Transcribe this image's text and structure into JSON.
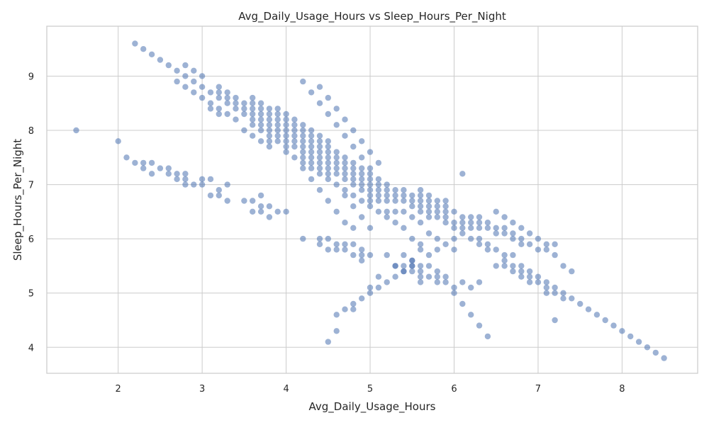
{
  "chart_data": {
    "type": "scatter",
    "title": "Avg_Daily_Usage_Hours vs Sleep_Hours_Per_Night",
    "xlabel": "Avg_Daily_Usage_Hours",
    "ylabel": "Sleep_Hours_Per_Night",
    "xlim": [
      1.15,
      8.9
    ],
    "ylim": [
      3.52,
      9.92
    ],
    "xticks": [
      2,
      3,
      4,
      5,
      6,
      7,
      8
    ],
    "yticks": [
      4,
      5,
      6,
      7,
      8,
      9
    ],
    "grid": true,
    "marker_color": "#4c72b0",
    "marker_alpha": 0.55,
    "points": [
      [
        1.5,
        8.0
      ],
      [
        2.0,
        7.8
      ],
      [
        2.1,
        7.5
      ],
      [
        2.2,
        7.4
      ],
      [
        2.3,
        7.4
      ],
      [
        2.3,
        7.3
      ],
      [
        2.4,
        7.4
      ],
      [
        2.4,
        7.2
      ],
      [
        2.5,
        7.3
      ],
      [
        2.6,
        7.3
      ],
      [
        2.6,
        7.2
      ],
      [
        2.7,
        7.2
      ],
      [
        2.7,
        7.1
      ],
      [
        2.8,
        7.2
      ],
      [
        2.8,
        7.1
      ],
      [
        2.8,
        7.0
      ],
      [
        2.9,
        7.0
      ],
      [
        3.0,
        7.1
      ],
      [
        3.0,
        7.0
      ],
      [
        3.1,
        7.1
      ],
      [
        3.1,
        6.8
      ],
      [
        3.2,
        6.9
      ],
      [
        3.2,
        6.8
      ],
      [
        3.3,
        7.0
      ],
      [
        3.3,
        6.7
      ],
      [
        3.5,
        6.7
      ],
      [
        3.6,
        6.7
      ],
      [
        3.6,
        6.5
      ],
      [
        3.7,
        6.8
      ],
      [
        3.7,
        6.6
      ],
      [
        3.7,
        6.5
      ],
      [
        3.8,
        6.6
      ],
      [
        3.8,
        6.4
      ],
      [
        3.9,
        6.5
      ],
      [
        4.0,
        6.5
      ],
      [
        2.2,
        9.6
      ],
      [
        2.3,
        9.5
      ],
      [
        2.4,
        9.4
      ],
      [
        2.5,
        9.3
      ],
      [
        2.6,
        9.2
      ],
      [
        2.7,
        9.1
      ],
      [
        2.7,
        8.9
      ],
      [
        2.8,
        9.2
      ],
      [
        2.8,
        9.0
      ],
      [
        2.8,
        8.8
      ],
      [
        2.9,
        9.1
      ],
      [
        2.9,
        8.9
      ],
      [
        2.9,
        8.7
      ],
      [
        3.0,
        9.0
      ],
      [
        3.0,
        8.8
      ],
      [
        3.0,
        8.6
      ],
      [
        3.1,
        8.7
      ],
      [
        3.1,
        8.5
      ],
      [
        3.1,
        8.4
      ],
      [
        3.2,
        8.8
      ],
      [
        3.2,
        8.7
      ],
      [
        3.2,
        8.6
      ],
      [
        3.2,
        8.4
      ],
      [
        3.2,
        8.3
      ],
      [
        3.3,
        8.7
      ],
      [
        3.3,
        8.6
      ],
      [
        3.3,
        8.5
      ],
      [
        3.3,
        8.3
      ],
      [
        3.4,
        8.6
      ],
      [
        3.4,
        8.5
      ],
      [
        3.4,
        8.4
      ],
      [
        3.4,
        8.2
      ],
      [
        3.5,
        8.5
      ],
      [
        3.5,
        8.4
      ],
      [
        3.5,
        8.3
      ],
      [
        3.5,
        8.0
      ],
      [
        3.6,
        8.6
      ],
      [
        3.6,
        8.5
      ],
      [
        3.6,
        8.4
      ],
      [
        3.6,
        8.3
      ],
      [
        3.6,
        8.2
      ],
      [
        3.6,
        8.1
      ],
      [
        3.6,
        7.9
      ],
      [
        3.7,
        8.5
      ],
      [
        3.7,
        8.4
      ],
      [
        3.7,
        8.3
      ],
      [
        3.7,
        8.2
      ],
      [
        3.7,
        8.1
      ],
      [
        3.7,
        8.0
      ],
      [
        3.7,
        7.8
      ],
      [
        3.8,
        8.4
      ],
      [
        3.8,
        8.3
      ],
      [
        3.8,
        8.2
      ],
      [
        3.8,
        8.1
      ],
      [
        3.8,
        8.0
      ],
      [
        3.8,
        7.9
      ],
      [
        3.8,
        7.8
      ],
      [
        3.8,
        7.7
      ],
      [
        3.9,
        8.4
      ],
      [
        3.9,
        8.3
      ],
      [
        3.9,
        8.2
      ],
      [
        3.9,
        8.1
      ],
      [
        3.9,
        8.0
      ],
      [
        3.9,
        7.9
      ],
      [
        3.9,
        7.8
      ],
      [
        4.0,
        8.3
      ],
      [
        4.0,
        8.2
      ],
      [
        4.0,
        8.1
      ],
      [
        4.0,
        8.0
      ],
      [
        4.0,
        7.9
      ],
      [
        4.0,
        7.8
      ],
      [
        4.0,
        7.7
      ],
      [
        4.0,
        7.6
      ],
      [
        4.1,
        8.2
      ],
      [
        4.1,
        8.1
      ],
      [
        4.1,
        8.0
      ],
      [
        4.1,
        7.9
      ],
      [
        4.1,
        7.8
      ],
      [
        4.1,
        7.7
      ],
      [
        4.1,
        7.5
      ],
      [
        4.2,
        8.9
      ],
      [
        4.2,
        8.1
      ],
      [
        4.2,
        8.0
      ],
      [
        4.2,
        7.9
      ],
      [
        4.2,
        7.8
      ],
      [
        4.2,
        7.7
      ],
      [
        4.2,
        7.6
      ],
      [
        4.2,
        7.5
      ],
      [
        4.2,
        7.4
      ],
      [
        4.2,
        7.3
      ],
      [
        4.3,
        8.7
      ],
      [
        4.3,
        8.0
      ],
      [
        4.3,
        7.9
      ],
      [
        4.3,
        7.8
      ],
      [
        4.3,
        7.7
      ],
      [
        4.3,
        7.6
      ],
      [
        4.3,
        7.5
      ],
      [
        4.3,
        7.4
      ],
      [
        4.3,
        7.3
      ],
      [
        4.3,
        7.1
      ],
      [
        4.4,
        8.8
      ],
      [
        4.4,
        8.5
      ],
      [
        4.4,
        7.9
      ],
      [
        4.4,
        7.8
      ],
      [
        4.4,
        7.7
      ],
      [
        4.4,
        7.6
      ],
      [
        4.4,
        7.5
      ],
      [
        4.4,
        7.4
      ],
      [
        4.4,
        7.3
      ],
      [
        4.4,
        7.2
      ],
      [
        4.4,
        6.9
      ],
      [
        4.5,
        8.6
      ],
      [
        4.5,
        8.3
      ],
      [
        4.5,
        7.8
      ],
      [
        4.5,
        7.7
      ],
      [
        4.5,
        7.6
      ],
      [
        4.5,
        7.5
      ],
      [
        4.5,
        7.4
      ],
      [
        4.5,
        7.3
      ],
      [
        4.5,
        7.2
      ],
      [
        4.5,
        7.1
      ],
      [
        4.5,
        6.7
      ],
      [
        4.6,
        8.4
      ],
      [
        4.6,
        8.1
      ],
      [
        4.6,
        7.6
      ],
      [
        4.6,
        7.5
      ],
      [
        4.6,
        7.4
      ],
      [
        4.6,
        7.3
      ],
      [
        4.6,
        7.2
      ],
      [
        4.6,
        7.0
      ],
      [
        4.6,
        6.5
      ],
      [
        4.7,
        8.2
      ],
      [
        4.7,
        7.9
      ],
      [
        4.7,
        7.5
      ],
      [
        4.7,
        7.4
      ],
      [
        4.7,
        7.3
      ],
      [
        4.7,
        7.2
      ],
      [
        4.7,
        7.1
      ],
      [
        4.7,
        6.9
      ],
      [
        4.7,
        6.8
      ],
      [
        4.7,
        6.3
      ],
      [
        4.8,
        8.0
      ],
      [
        4.8,
        7.7
      ],
      [
        4.8,
        7.4
      ],
      [
        4.8,
        7.3
      ],
      [
        4.8,
        7.2
      ],
      [
        4.8,
        7.1
      ],
      [
        4.8,
        7.0
      ],
      [
        4.8,
        6.8
      ],
      [
        4.8,
        6.6
      ],
      [
        4.8,
        6.2
      ],
      [
        4.9,
        7.8
      ],
      [
        4.9,
        7.5
      ],
      [
        4.9,
        7.3
      ],
      [
        4.9,
        7.2
      ],
      [
        4.9,
        7.1
      ],
      [
        4.9,
        7.0
      ],
      [
        4.9,
        6.9
      ],
      [
        4.9,
        6.7
      ],
      [
        4.9,
        6.4
      ],
      [
        5.0,
        7.6
      ],
      [
        5.0,
        7.3
      ],
      [
        5.0,
        7.2
      ],
      [
        5.0,
        7.1
      ],
      [
        5.0,
        7.0
      ],
      [
        5.0,
        6.9
      ],
      [
        5.0,
        6.8
      ],
      [
        5.0,
        6.7
      ],
      [
        5.0,
        6.6
      ],
      [
        5.0,
        6.2
      ],
      [
        5.1,
        7.4
      ],
      [
        5.1,
        7.1
      ],
      [
        5.1,
        7.0
      ],
      [
        5.1,
        6.9
      ],
      [
        5.1,
        6.8
      ],
      [
        5.1,
        6.7
      ],
      [
        5.1,
        6.5
      ],
      [
        5.2,
        7.0
      ],
      [
        5.2,
        6.9
      ],
      [
        5.2,
        6.8
      ],
      [
        5.2,
        6.7
      ],
      [
        5.2,
        6.5
      ],
      [
        5.2,
        6.4
      ],
      [
        5.3,
        6.9
      ],
      [
        5.3,
        6.8
      ],
      [
        5.3,
        6.7
      ],
      [
        5.3,
        6.5
      ],
      [
        5.3,
        6.3
      ],
      [
        5.4,
        6.9
      ],
      [
        5.4,
        6.8
      ],
      [
        5.4,
        6.7
      ],
      [
        5.4,
        6.5
      ],
      [
        5.4,
        6.2
      ],
      [
        5.5,
        6.8
      ],
      [
        5.5,
        6.7
      ],
      [
        5.5,
        6.6
      ],
      [
        5.5,
        6.4
      ],
      [
        5.5,
        6.0
      ],
      [
        5.6,
        6.9
      ],
      [
        5.6,
        6.8
      ],
      [
        5.6,
        6.7
      ],
      [
        5.6,
        6.6
      ],
      [
        5.6,
        6.5
      ],
      [
        5.6,
        6.3
      ],
      [
        5.6,
        5.9
      ],
      [
        5.7,
        6.8
      ],
      [
        5.7,
        6.7
      ],
      [
        5.7,
        6.6
      ],
      [
        5.7,
        6.5
      ],
      [
        5.7,
        6.4
      ],
      [
        5.7,
        6.1
      ],
      [
        5.8,
        6.7
      ],
      [
        5.8,
        6.6
      ],
      [
        5.8,
        6.5
      ],
      [
        5.8,
        6.4
      ],
      [
        5.8,
        6.0
      ],
      [
        5.8,
        5.8
      ],
      [
        5.9,
        6.7
      ],
      [
        5.9,
        6.6
      ],
      [
        5.9,
        6.5
      ],
      [
        5.9,
        6.4
      ],
      [
        5.9,
        6.3
      ],
      [
        5.9,
        5.9
      ],
      [
        6.0,
        6.5
      ],
      [
        6.0,
        6.3
      ],
      [
        6.0,
        6.2
      ],
      [
        6.0,
        6.0
      ],
      [
        6.0,
        5.8
      ],
      [
        6.1,
        7.2
      ],
      [
        6.1,
        6.4
      ],
      [
        6.1,
        6.3
      ],
      [
        6.1,
        6.2
      ],
      [
        6.1,
        6.1
      ],
      [
        6.2,
        6.4
      ],
      [
        6.2,
        6.3
      ],
      [
        6.2,
        6.2
      ],
      [
        6.2,
        6.0
      ],
      [
        6.3,
        6.4
      ],
      [
        6.3,
        6.3
      ],
      [
        6.3,
        6.2
      ],
      [
        6.3,
        6.0
      ],
      [
        6.3,
        5.9
      ],
      [
        6.4,
        6.3
      ],
      [
        6.4,
        6.2
      ],
      [
        6.4,
        5.9
      ],
      [
        6.4,
        5.8
      ],
      [
        6.5,
        6.5
      ],
      [
        6.5,
        6.2
      ],
      [
        6.5,
        6.1
      ],
      [
        6.5,
        5.8
      ],
      [
        6.5,
        5.5
      ],
      [
        6.6,
        6.4
      ],
      [
        6.6,
        6.2
      ],
      [
        6.6,
        6.1
      ],
      [
        6.6,
        5.7
      ],
      [
        6.6,
        5.6
      ],
      [
        6.6,
        5.5
      ],
      [
        6.7,
        6.3
      ],
      [
        6.7,
        6.1
      ],
      [
        6.7,
        6.0
      ],
      [
        6.7,
        5.7
      ],
      [
        6.7,
        5.5
      ],
      [
        6.7,
        5.4
      ],
      [
        6.8,
        6.2
      ],
      [
        6.8,
        6.0
      ],
      [
        6.8,
        5.9
      ],
      [
        6.8,
        5.5
      ],
      [
        6.8,
        5.4
      ],
      [
        6.8,
        5.3
      ],
      [
        6.9,
        6.1
      ],
      [
        6.9,
        5.9
      ],
      [
        6.9,
        5.4
      ],
      [
        6.9,
        5.3
      ],
      [
        6.9,
        5.2
      ],
      [
        7.0,
        6.0
      ],
      [
        7.0,
        5.8
      ],
      [
        7.0,
        5.3
      ],
      [
        7.0,
        5.2
      ],
      [
        7.1,
        5.9
      ],
      [
        7.1,
        5.8
      ],
      [
        7.1,
        5.2
      ],
      [
        7.1,
        5.1
      ],
      [
        7.1,
        5.0
      ],
      [
        7.2,
        5.9
      ],
      [
        7.2,
        5.7
      ],
      [
        7.2,
        5.1
      ],
      [
        7.2,
        5.0
      ],
      [
        7.2,
        4.5
      ],
      [
        7.3,
        5.5
      ],
      [
        7.3,
        5.0
      ],
      [
        7.3,
        4.9
      ],
      [
        7.4,
        5.4
      ],
      [
        7.4,
        4.9
      ],
      [
        7.5,
        4.8
      ],
      [
        7.6,
        4.7
      ],
      [
        7.7,
        4.6
      ],
      [
        7.8,
        4.5
      ],
      [
        7.9,
        4.4
      ],
      [
        8.0,
        4.3
      ],
      [
        8.1,
        4.2
      ],
      [
        8.2,
        4.1
      ],
      [
        8.3,
        4.0
      ],
      [
        8.4,
        3.9
      ],
      [
        8.5,
        3.8
      ],
      [
        4.2,
        6.0
      ],
      [
        4.4,
        6.0
      ],
      [
        4.4,
        5.9
      ],
      [
        4.5,
        6.0
      ],
      [
        4.5,
        5.8
      ],
      [
        4.6,
        5.9
      ],
      [
        4.6,
        5.8
      ],
      [
        4.7,
        5.9
      ],
      [
        4.7,
        5.8
      ],
      [
        4.8,
        5.9
      ],
      [
        4.8,
        5.7
      ],
      [
        4.9,
        5.8
      ],
      [
        4.9,
        5.7
      ],
      [
        4.9,
        5.6
      ],
      [
        5.0,
        5.7
      ],
      [
        5.2,
        5.7
      ],
      [
        5.3,
        5.5
      ],
      [
        5.4,
        5.7
      ],
      [
        5.4,
        5.5
      ],
      [
        5.4,
        5.4
      ],
      [
        5.5,
        5.6
      ],
      [
        5.5,
        5.5
      ],
      [
        5.5,
        5.4
      ],
      [
        5.6,
        5.8
      ],
      [
        5.6,
        5.5
      ],
      [
        5.6,
        5.4
      ],
      [
        5.6,
        5.3
      ],
      [
        5.6,
        5.2
      ],
      [
        5.7,
        5.7
      ],
      [
        5.7,
        5.5
      ],
      [
        5.7,
        5.3
      ],
      [
        5.8,
        5.4
      ],
      [
        5.8,
        5.3
      ],
      [
        5.8,
        5.2
      ],
      [
        5.9,
        5.3
      ],
      [
        5.9,
        5.2
      ],
      [
        6.0,
        5.1
      ],
      [
        6.0,
        5.0
      ],
      [
        4.5,
        4.1
      ],
      [
        4.6,
        4.6
      ],
      [
        4.6,
        4.3
      ],
      [
        4.7,
        4.7
      ],
      [
        4.8,
        4.8
      ],
      [
        4.8,
        4.7
      ],
      [
        4.9,
        4.9
      ],
      [
        5.0,
        5.1
      ],
      [
        5.0,
        5.0
      ],
      [
        5.1,
        5.1
      ],
      [
        5.1,
        5.3
      ],
      [
        5.2,
        5.2
      ],
      [
        5.3,
        5.3
      ],
      [
        5.3,
        5.5
      ],
      [
        5.4,
        5.4
      ],
      [
        5.5,
        5.5
      ],
      [
        5.5,
        5.6
      ],
      [
        6.1,
        5.2
      ],
      [
        6.1,
        4.8
      ],
      [
        6.2,
        5.1
      ],
      [
        6.2,
        4.6
      ],
      [
        6.3,
        5.2
      ],
      [
        6.3,
        4.4
      ],
      [
        6.4,
        4.2
      ]
    ]
  }
}
